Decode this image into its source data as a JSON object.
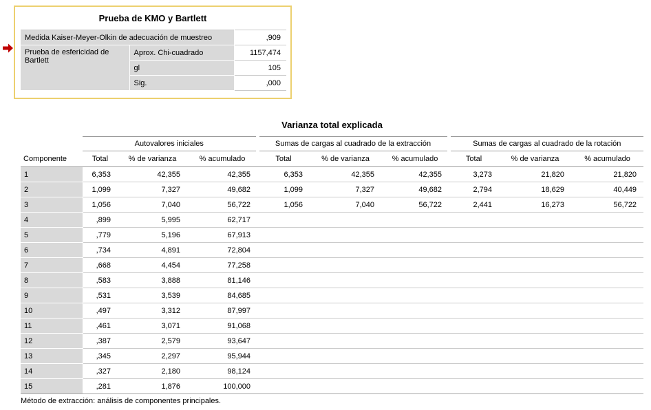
{
  "colors": {
    "selection_border": "#ecd06f",
    "selection_arrow": "#c00000",
    "label_cell_gray": "#d9d9d9"
  },
  "kmo_table": {
    "title": "Prueba de KMO y Bartlett",
    "kmo_label": "Medida Kaiser-Meyer-Olkin de adecuación de muestreo",
    "kmo_value": ",909",
    "bartlett_label": "Prueba de esfericidad de Bartlett",
    "bartlett_rows": [
      {
        "label": "Aprox. Chi-cuadrado",
        "value": "1157,474"
      },
      {
        "label": "gl",
        "value": "105"
      },
      {
        "label": "Sig.",
        "value": ",000"
      }
    ]
  },
  "variance_table": {
    "title": "Varianza total explicada",
    "col_groups": [
      "Autovalores iniciales",
      "Sumas de cargas al cuadrado de la extracción",
      "Sumas de cargas al cuadrado de la rotación"
    ],
    "col_headers": [
      "Componente",
      "Total",
      "% de varianza",
      "% acumulado",
      "Total",
      "% de varianza",
      "% acumulado",
      "Total",
      "% de varianza",
      "% acumulado"
    ],
    "rows": [
      [
        "1",
        "6,353",
        "42,355",
        "42,355",
        "6,353",
        "42,355",
        "42,355",
        "3,273",
        "21,820",
        "21,820"
      ],
      [
        "2",
        "1,099",
        "7,327",
        "49,682",
        "1,099",
        "7,327",
        "49,682",
        "2,794",
        "18,629",
        "40,449"
      ],
      [
        "3",
        "1,056",
        "7,040",
        "56,722",
        "1,056",
        "7,040",
        "56,722",
        "2,441",
        "16,273",
        "56,722"
      ],
      [
        "4",
        ",899",
        "5,995",
        "62,717",
        "",
        "",
        "",
        "",
        "",
        ""
      ],
      [
        "5",
        ",779",
        "5,196",
        "67,913",
        "",
        "",
        "",
        "",
        "",
        ""
      ],
      [
        "6",
        ",734",
        "4,891",
        "72,804",
        "",
        "",
        "",
        "",
        "",
        ""
      ],
      [
        "7",
        ",668",
        "4,454",
        "77,258",
        "",
        "",
        "",
        "",
        "",
        ""
      ],
      [
        "8",
        ",583",
        "3,888",
        "81,146",
        "",
        "",
        "",
        "",
        "",
        ""
      ],
      [
        "9",
        ",531",
        "3,539",
        "84,685",
        "",
        "",
        "",
        "",
        "",
        ""
      ],
      [
        "10",
        ",497",
        "3,312",
        "87,997",
        "",
        "",
        "",
        "",
        "",
        ""
      ],
      [
        "11",
        ",461",
        "3,071",
        "91,068",
        "",
        "",
        "",
        "",
        "",
        ""
      ],
      [
        "12",
        ",387",
        "2,579",
        "93,647",
        "",
        "",
        "",
        "",
        "",
        ""
      ],
      [
        "13",
        ",345",
        "2,297",
        "95,944",
        "",
        "",
        "",
        "",
        "",
        ""
      ],
      [
        "14",
        ",327",
        "2,180",
        "98,124",
        "",
        "",
        "",
        "",
        "",
        ""
      ],
      [
        "15",
        ",281",
        "1,876",
        "100,000",
        "",
        "",
        "",
        "",
        "",
        ""
      ]
    ],
    "footnote": "Método de extracción: análisis de componentes principales."
  }
}
